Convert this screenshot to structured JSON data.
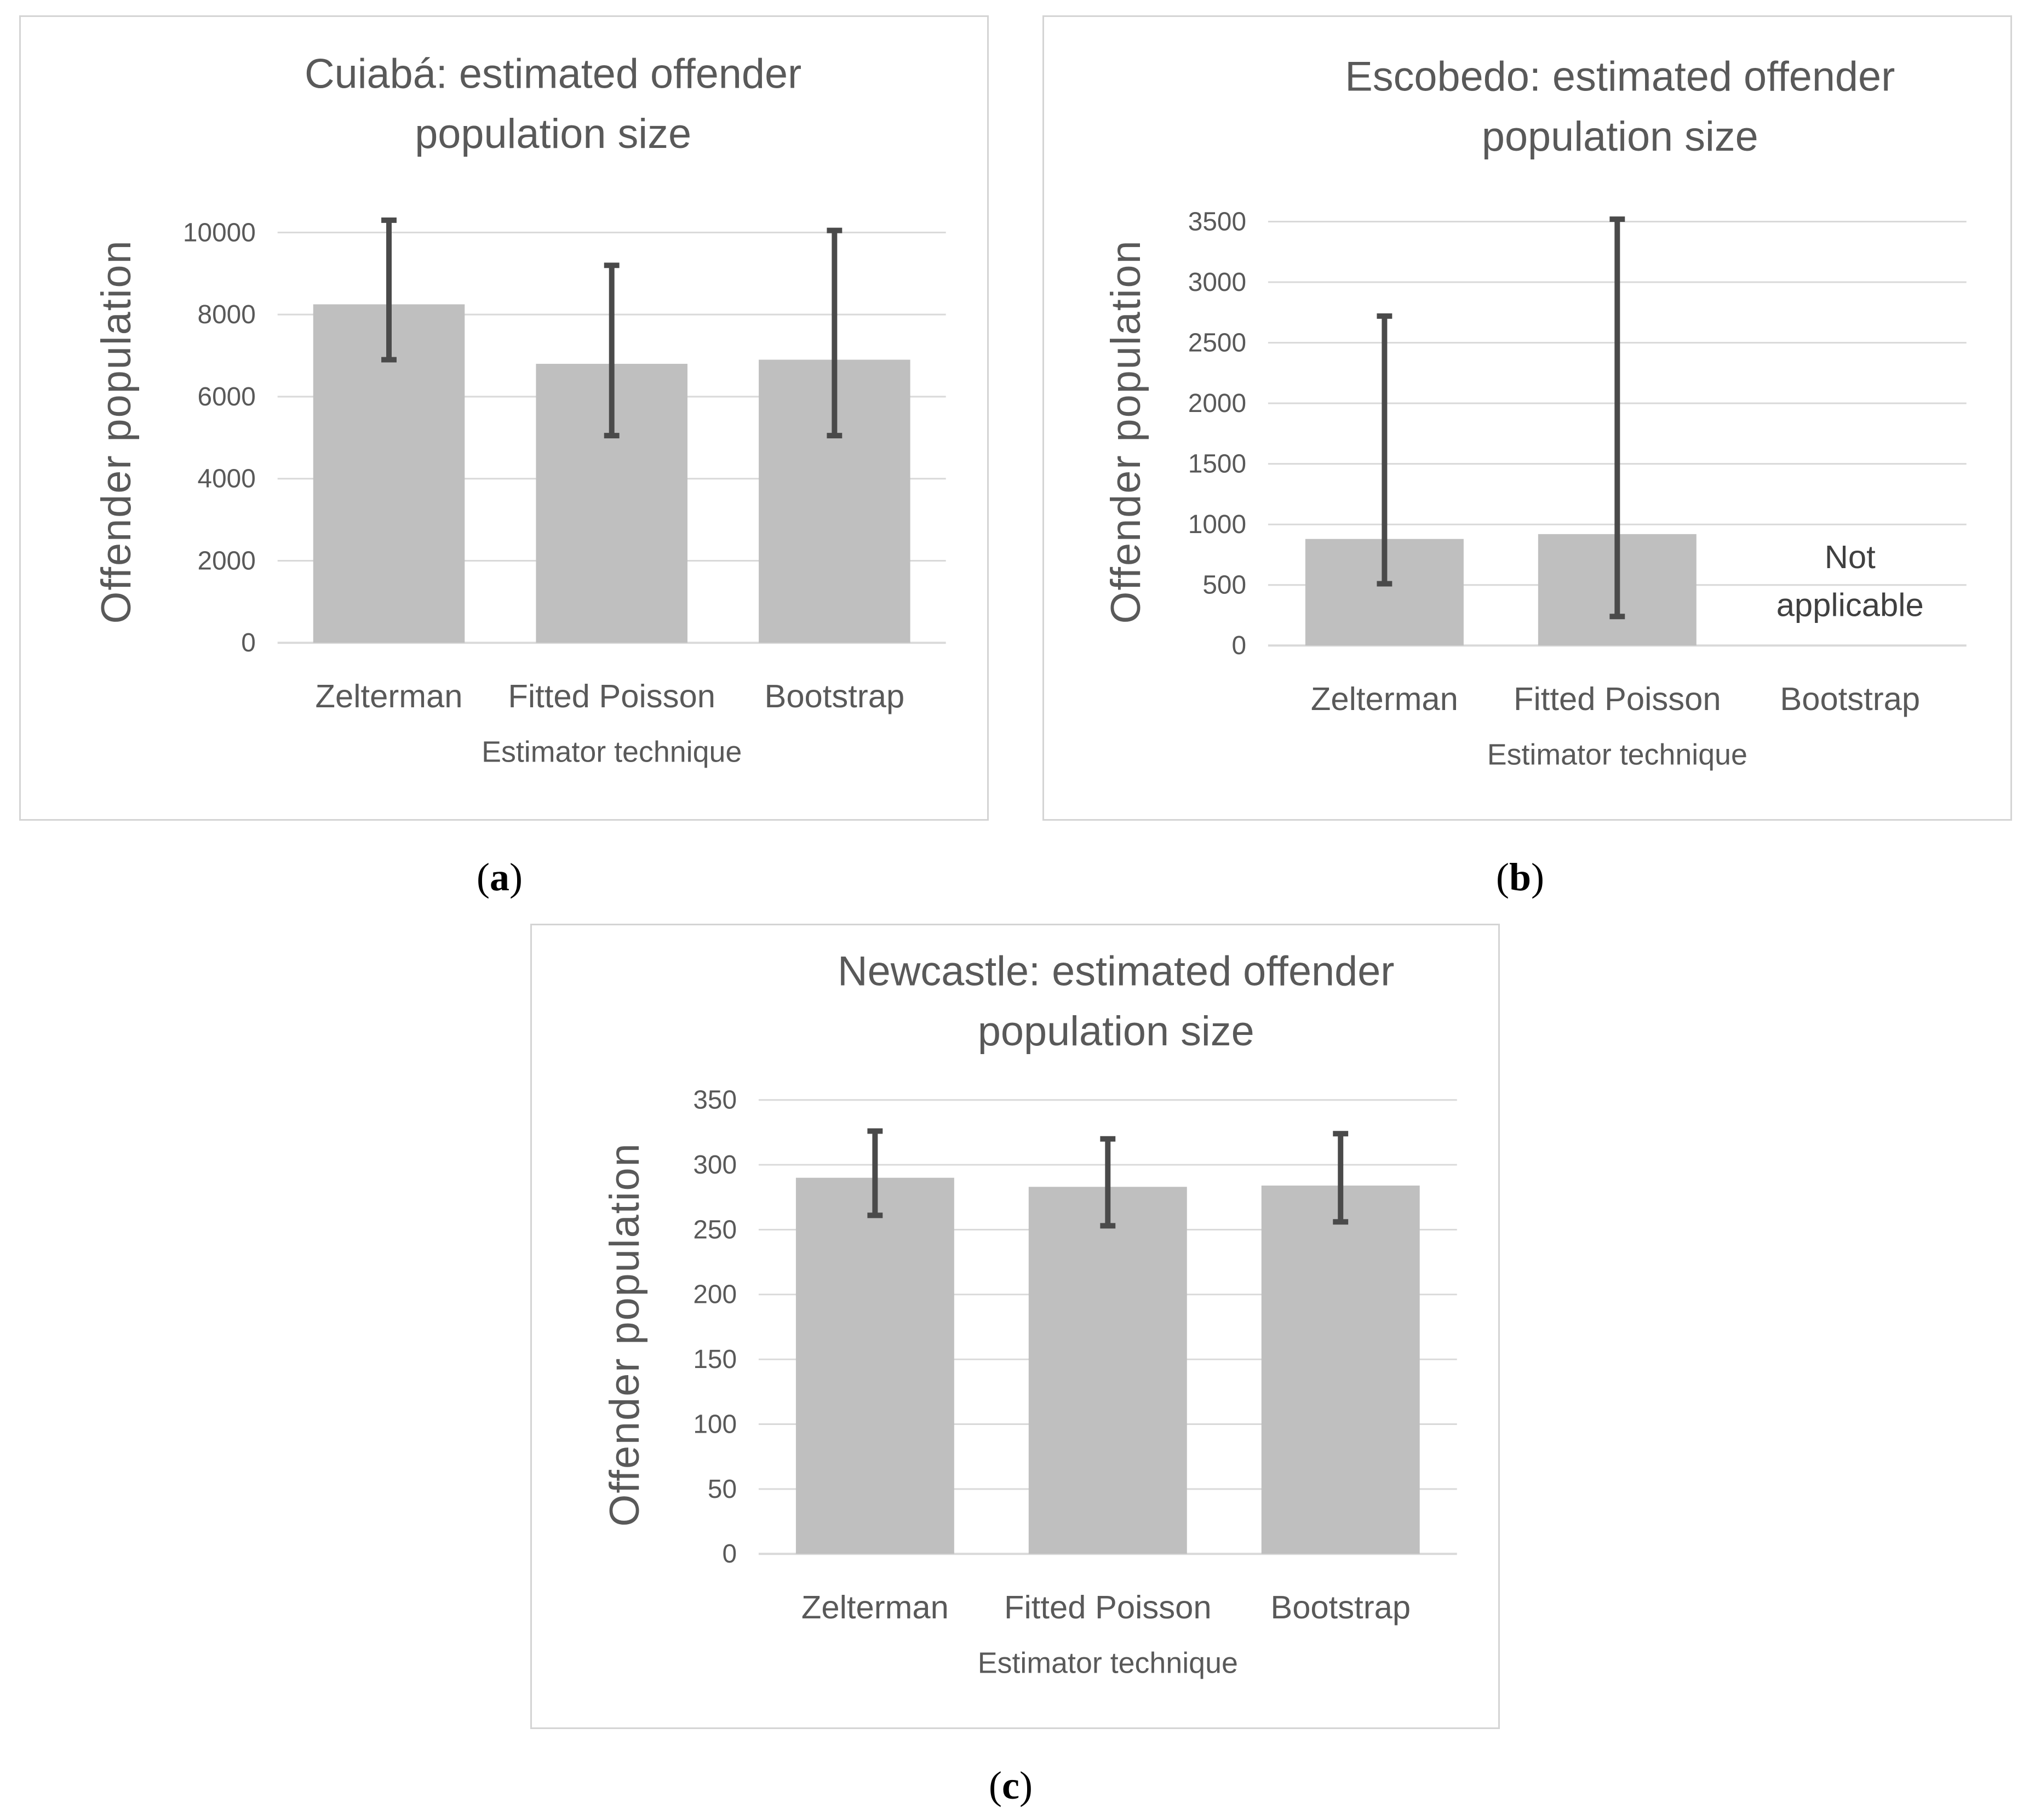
{
  "colors": {
    "bar": "#bfbfbf",
    "error_bar": "#4a4a4a",
    "grid": "#d9d9d9",
    "text": "#595959"
  },
  "captions": [
    {
      "open": "(",
      "letter": "a",
      "close": ")"
    },
    {
      "open": "(",
      "letter": "b",
      "close": ")"
    },
    {
      "open": "(",
      "letter": "c",
      "close": ")"
    }
  ],
  "chart_data": [
    {
      "type": "bar",
      "title_lines": [
        "Cuiabá: estimated offender",
        "population size"
      ],
      "xlabel": "Estimator technique",
      "ylabel": "Offender population",
      "categories": [
        "Zelterman",
        "Fitted Poisson",
        "Bootstrap"
      ],
      "values": [
        8250,
        6800,
        6900
      ],
      "error_low": [
        6900,
        5050,
        5050
      ],
      "error_high": [
        10300,
        9200,
        10050
      ],
      "ylim": [
        0,
        10000
      ],
      "yticks": [
        0,
        2000,
        4000,
        6000,
        8000,
        10000
      ],
      "grid": true,
      "notes": []
    },
    {
      "type": "bar",
      "title_lines": [
        "Escobedo: estimated offender",
        "population size"
      ],
      "xlabel": "Estimator technique",
      "ylabel": "Offender population",
      "categories": [
        "Zelterman",
        "Fitted Poisson",
        "Bootstrap"
      ],
      "values": [
        880,
        920,
        null
      ],
      "error_low": [
        510,
        240,
        null
      ],
      "error_high": [
        2720,
        3520,
        null
      ],
      "ylim": [
        0,
        3500
      ],
      "yticks": [
        0,
        500,
        1000,
        1500,
        2000,
        2500,
        3000,
        3500
      ],
      "grid": true,
      "notes": [
        {
          "category": 2,
          "lines": [
            "Not",
            "applicable"
          ]
        }
      ]
    },
    {
      "type": "bar",
      "title_lines": [
        "Newcastle: estimated offender",
        "population size"
      ],
      "xlabel": "Estimator technique",
      "ylabel": "Offender population",
      "categories": [
        "Zelterman",
        "Fitted Poisson",
        "Bootstrap"
      ],
      "values": [
        290,
        283,
        284
      ],
      "error_low": [
        261,
        253,
        256
      ],
      "error_high": [
        326,
        320,
        324
      ],
      "ylim": [
        0,
        350
      ],
      "yticks": [
        0,
        50,
        100,
        150,
        200,
        250,
        300,
        350
      ],
      "grid": true,
      "notes": []
    }
  ]
}
